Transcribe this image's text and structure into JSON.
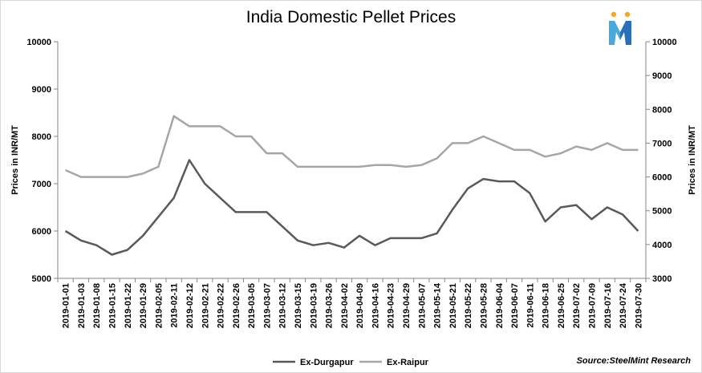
{
  "chart_data": {
    "type": "line",
    "title": "India Domestic Pellet Prices",
    "source": "Source:SteelMint Research",
    "ylabel_left": "Prices in INR/MT",
    "ylabel_right": "Prices in INR/MT",
    "ylim_left": [
      5000,
      10000
    ],
    "yticks_left": [
      5000,
      6000,
      7000,
      8000,
      9000,
      10000
    ],
    "ylim_right": [
      3000,
      10000
    ],
    "yticks_right": [
      3000,
      4000,
      5000,
      6000,
      7000,
      8000,
      9000,
      10000
    ],
    "grid": false,
    "legend_position": "bottom",
    "x": [
      "2019-01-01",
      "2019-01-03",
      "2019-01-08",
      "2019-01-15",
      "2019-01-22",
      "2019-01-29",
      "2019-02-05",
      "2019-02-11",
      "2019-02-12",
      "2019-02-21",
      "2019-02-22",
      "2019-02-26",
      "2019-03-05",
      "2019-03-07",
      "2019-03-12",
      "2019-03-15",
      "2019-03-19",
      "2019-03-26",
      "2019-04-02",
      "2019-04-09",
      "2019-04-16",
      "2019-04-23",
      "2019-04-29",
      "2019-05-07",
      "2019-05-14",
      "2019-05-21",
      "2019-05-22",
      "2019-05-28",
      "2019-06-04",
      "2019-06-07",
      "2019-06-11",
      "2019-06-18",
      "2019-06-25",
      "2019-07-02",
      "2019-07-09",
      "2019-07-16",
      "2019-07-24",
      "2019-07-30"
    ],
    "series": [
      {
        "name": "Ex-Durgapur",
        "axis": "left",
        "color": "#595959",
        "values": [
          6000,
          5800,
          5700,
          5500,
          5600,
          5900,
          6300,
          6700,
          7500,
          7000,
          6700,
          6400,
          6400,
          6400,
          6100,
          5800,
          5700,
          5750,
          5650,
          5900,
          5700,
          5850,
          5850,
          5850,
          5950,
          6450,
          6900,
          7100,
          7050,
          7050,
          6800,
          6200,
          6500,
          6550,
          6250,
          6500,
          6350,
          6000
        ]
      },
      {
        "name": "Ex-Raipur",
        "axis": "right",
        "color": "#a6a6a6",
        "values": [
          6200,
          6000,
          6000,
          6000,
          6000,
          6100,
          6300,
          7800,
          7500,
          7500,
          7500,
          7200,
          7200,
          6700,
          6700,
          6300,
          6300,
          6300,
          6300,
          6300,
          6350,
          6350,
          6300,
          6350,
          6550,
          7000,
          7000,
          7200,
          7000,
          6800,
          6800,
          6600,
          6700,
          6900,
          6800,
          7000,
          6800,
          6800
        ]
      }
    ]
  },
  "logo": {
    "name": "SteelMint logo",
    "colors": [
      "#f7a823",
      "#2a6fb8",
      "#49a9dd"
    ]
  }
}
